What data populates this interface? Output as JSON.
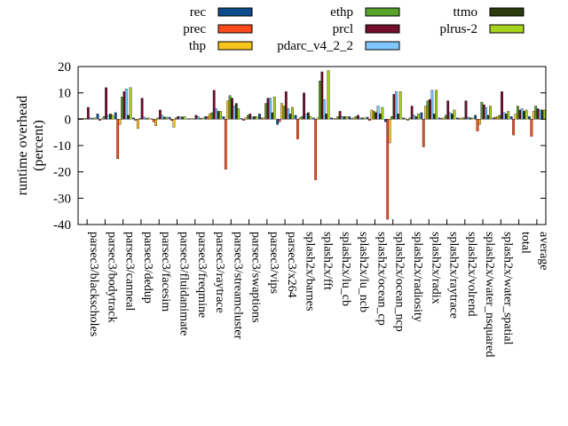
{
  "chart_data": {
    "type": "bar",
    "title": "",
    "xlabel": "",
    "ylabel": "runtime overhead (percent)",
    "ylabel_lines": [
      "runtime overhead",
      "(percent)"
    ],
    "ylim": [
      -40,
      20
    ],
    "yticks": [
      -40,
      -30,
      -20,
      -10,
      0,
      10,
      20
    ],
    "grid": false,
    "legend_position": "top",
    "categories": [
      "parsec3/blackscholes",
      "parsec3/bodytrack",
      "parsec3/canneal",
      "parsec3/dedup",
      "parsec3/facesim",
      "parsec3/fluidanimate",
      "parsec3/freqmine",
      "parsec3/raytrace",
      "parsec3/streamcluster",
      "parsec3/swaptions",
      "parsec3/vips",
      "parsec3/x264",
      "splash2x/barnes",
      "splash2x/fft",
      "splash2x/lu_cb",
      "splash2x/lu_ncb",
      "splash2x/ocean_cp",
      "splash2x/ocean_ncp",
      "splash2x/radiosity",
      "splash2x/radix",
      "splash2x/raytrace",
      "splash2x/volrend",
      "splash2x/water_nsquared",
      "splash2x/water_spatial",
      "total",
      "average"
    ],
    "series": [
      {
        "name": "rec",
        "color": "#0b4d8c",
        "values": [
          0.3,
          2.0,
          2.5,
          0.5,
          0.2,
          0.8,
          0.2,
          1.0,
          1.0,
          0.3,
          2.0,
          -2.0,
          1.5,
          0.5,
          0.5,
          1.0,
          0.8,
          -1.0,
          0.5,
          2.5,
          0.5,
          0.5,
          1.5,
          0.5,
          1.0,
          1.0
        ]
      },
      {
        "name": "prec",
        "color": "#ff4a1c",
        "values": [
          0.3,
          -0.5,
          -15.0,
          -0.5,
          -1.0,
          -0.5,
          0.2,
          1.0,
          -19.0,
          -0.5,
          0.5,
          -1.0,
          -7.5,
          -23.0,
          0.2,
          0.3,
          -0.5,
          -38.0,
          0.2,
          -10.5,
          0.3,
          0.3,
          -4.5,
          0.8,
          -6.0,
          -6.5
        ]
      },
      {
        "name": "thp",
        "color": "#f7c51b",
        "values": [
          0.3,
          0.2,
          -2.0,
          -3.5,
          -2.5,
          -3.0,
          0.2,
          2.0,
          7.0,
          0.5,
          0.5,
          6.0,
          0.5,
          0.5,
          0.3,
          0.5,
          3.5,
          -9.0,
          -0.5,
          5.0,
          0.5,
          0.5,
          -2.0,
          1.0,
          2.0,
          3.0
        ]
      },
      {
        "name": "ethp",
        "color": "#59a22b",
        "values": [
          0.3,
          1.0,
          8.5,
          0.3,
          0.5,
          0.5,
          0.2,
          2.5,
          9.0,
          1.5,
          6.0,
          5.0,
          1.0,
          14.5,
          1.0,
          1.0,
          3.0,
          1.0,
          0.5,
          7.0,
          1.5,
          0.5,
          6.5,
          1.5,
          5.0,
          5.0
        ]
      },
      {
        "name": "prcl",
        "color": "#730e2c",
        "values": [
          4.5,
          12.0,
          10.5,
          8.0,
          3.5,
          1.0,
          1.5,
          11.0,
          8.0,
          2.0,
          8.0,
          10.5,
          10.0,
          18.0,
          3.0,
          1.5,
          2.5,
          9.5,
          5.0,
          7.5,
          7.0,
          7.0,
          5.5,
          10.5,
          3.5,
          4.0
        ]
      },
      {
        "name": "pdarc_v4_2_2",
        "color": "#7ec8ff",
        "values": [
          0.5,
          1.5,
          11.5,
          0.8,
          1.5,
          1.0,
          1.0,
          4.0,
          5.0,
          0.8,
          8.0,
          4.0,
          2.0,
          7.5,
          1.0,
          0.5,
          5.0,
          10.5,
          1.5,
          11.0,
          2.5,
          0.8,
          4.5,
          2.5,
          4.0,
          3.5
        ]
      },
      {
        "name": "ttmo",
        "color": "#2c3a0d",
        "values": [
          0.3,
          2.0,
          1.5,
          0.3,
          0.8,
          0.8,
          0.3,
          3.0,
          6.0,
          1.0,
          2.5,
          2.0,
          2.5,
          2.0,
          1.0,
          0.5,
          2.0,
          2.0,
          1.0,
          2.0,
          2.0,
          0.5,
          1.5,
          2.0,
          3.0,
          3.5
        ]
      },
      {
        "name": "plrus-2",
        "color": "#a6d41c",
        "values": [
          0.5,
          1.5,
          12.0,
          0.5,
          0.8,
          1.0,
          0.5,
          3.0,
          4.0,
          1.0,
          8.5,
          4.5,
          1.0,
          18.5,
          1.0,
          0.5,
          4.5,
          10.5,
          2.0,
          11.0,
          3.5,
          0.5,
          5.0,
          3.0,
          3.5,
          3.5
        ]
      }
    ]
  }
}
